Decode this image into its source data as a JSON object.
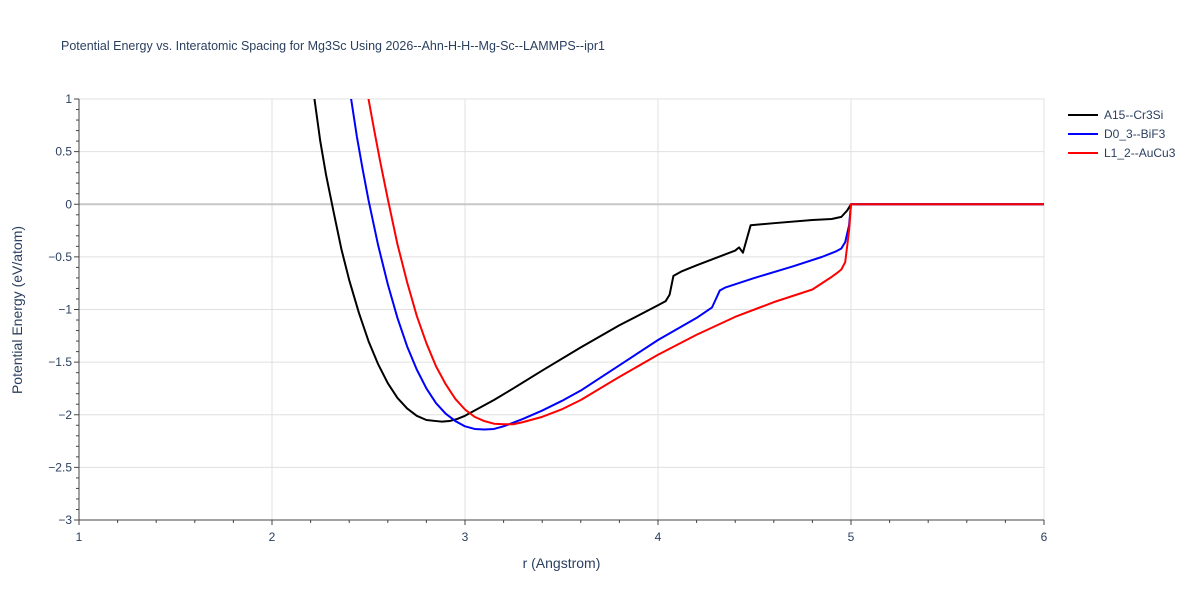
{
  "chart_data": {
    "type": "line",
    "title": "Potential Energy vs. Interatomic Spacing for Mg3Sc Using 2026--Ahn-H-H--Mg-Sc--LAMMPS--ipr1",
    "xlabel": "r (Angstrom)",
    "ylabel": "Potential Energy (eV/atom)",
    "xlim": [
      1,
      6
    ],
    "ylim": [
      -3,
      1
    ],
    "xticks": [
      1,
      2,
      3,
      4,
      5,
      6
    ],
    "yticks": [
      -3,
      -2.5,
      -2,
      -1.5,
      -1,
      -0.5,
      0,
      0.5,
      1
    ],
    "ytick_labels": [
      "−3",
      "−2.5",
      "−2",
      "−1.5",
      "−1",
      "−0.5",
      "0",
      "0.5",
      "1"
    ],
    "grid": true,
    "legend_position": "top-right",
    "series": [
      {
        "name": "A15--Cr3Si",
        "color": "#000000",
        "x": [
          2.22,
          2.25,
          2.28,
          2.32,
          2.36,
          2.4,
          2.45,
          2.5,
          2.55,
          2.6,
          2.65,
          2.7,
          2.75,
          2.8,
          2.85,
          2.88,
          2.92,
          2.96,
          3.0,
          3.05,
          3.1,
          3.15,
          3.25,
          3.4,
          3.6,
          3.8,
          4.0,
          4.04,
          4.06,
          4.08,
          4.12,
          4.2,
          4.3,
          4.4,
          4.42,
          4.44,
          4.48,
          4.6,
          4.8,
          4.9,
          4.95,
          4.98,
          5.0,
          5.05,
          5.5,
          6.0
        ],
        "y": [
          1.0,
          0.6,
          0.28,
          -0.08,
          -0.43,
          -0.72,
          -1.03,
          -1.3,
          -1.52,
          -1.7,
          -1.84,
          -1.94,
          -2.01,
          -2.05,
          -2.06,
          -2.065,
          -2.06,
          -2.04,
          -2.01,
          -1.96,
          -1.91,
          -1.86,
          -1.75,
          -1.58,
          -1.36,
          -1.15,
          -0.96,
          -0.92,
          -0.86,
          -0.68,
          -0.64,
          -0.58,
          -0.51,
          -0.44,
          -0.41,
          -0.46,
          -0.2,
          -0.18,
          -0.15,
          -0.14,
          -0.12,
          -0.06,
          0.0,
          0.0,
          0.0,
          0.0
        ]
      },
      {
        "name": "D0_3--BiF3",
        "color": "#0000ff",
        "x": [
          2.41,
          2.44,
          2.47,
          2.5,
          2.55,
          2.6,
          2.65,
          2.7,
          2.75,
          2.8,
          2.85,
          2.9,
          2.95,
          3.0,
          3.05,
          3.1,
          3.15,
          3.2,
          3.3,
          3.4,
          3.5,
          3.6,
          3.8,
          4.0,
          4.2,
          4.28,
          4.3,
          4.32,
          4.35,
          4.5,
          4.7,
          4.85,
          4.92,
          4.95,
          4.97,
          4.99,
          5.0,
          5.05,
          5.5,
          6.0
        ],
        "y": [
          1.0,
          0.64,
          0.33,
          0.04,
          -0.39,
          -0.76,
          -1.08,
          -1.35,
          -1.57,
          -1.75,
          -1.89,
          -1.99,
          -2.06,
          -2.11,
          -2.135,
          -2.14,
          -2.135,
          -2.11,
          -2.04,
          -1.96,
          -1.87,
          -1.77,
          -1.53,
          -1.29,
          -1.08,
          -0.98,
          -0.9,
          -0.82,
          -0.79,
          -0.7,
          -0.59,
          -0.5,
          -0.45,
          -0.42,
          -0.36,
          -0.2,
          0.0,
          0.0,
          0.0,
          0.0
        ]
      },
      {
        "name": "L1_2--AuCu3",
        "color": "#ff0000",
        "x": [
          2.5,
          2.53,
          2.56,
          2.6,
          2.65,
          2.7,
          2.75,
          2.8,
          2.85,
          2.9,
          2.95,
          3.0,
          3.05,
          3.1,
          3.15,
          3.2,
          3.25,
          3.3,
          3.4,
          3.5,
          3.6,
          3.8,
          4.0,
          4.2,
          4.4,
          4.6,
          4.8,
          4.9,
          4.93,
          4.95,
          4.97,
          4.99,
          5.0,
          5.05,
          5.5,
          6.0
        ],
        "y": [
          1.0,
          0.7,
          0.41,
          0.05,
          -0.38,
          -0.74,
          -1.06,
          -1.32,
          -1.54,
          -1.71,
          -1.85,
          -1.95,
          -2.02,
          -2.06,
          -2.085,
          -2.09,
          -2.09,
          -2.07,
          -2.02,
          -1.95,
          -1.86,
          -1.64,
          -1.43,
          -1.24,
          -1.07,
          -0.93,
          -0.81,
          -0.69,
          -0.65,
          -0.62,
          -0.55,
          -0.25,
          0.0,
          0.0,
          0.0,
          0.0
        ]
      }
    ]
  }
}
